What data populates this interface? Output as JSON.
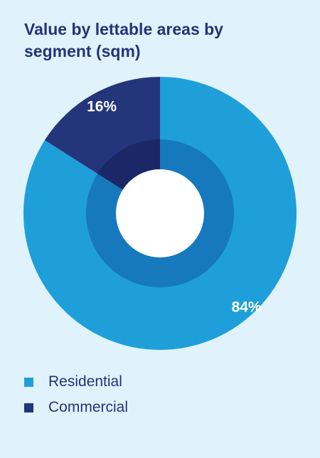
{
  "chart_data": {
    "type": "pie",
    "title": "Value by lettable areas by segment (sqm)",
    "categories": [
      "Residential",
      "Commercial"
    ],
    "values": [
      84,
      16
    ],
    "unit": "%",
    "data_labels": [
      "84%",
      "16%"
    ],
    "legend_position": "bottom-left",
    "colors": {
      "outer": [
        "#1e9fda",
        "#25357c"
      ],
      "inner": [
        "#1779bd",
        "#1b2766"
      ],
      "hole": "#ffffff",
      "label_text": "#ffffff"
    }
  },
  "legend": [
    {
      "label": "Residential",
      "color": "#1e9fda"
    },
    {
      "label": "Commercial",
      "color": "#25357c"
    }
  ]
}
